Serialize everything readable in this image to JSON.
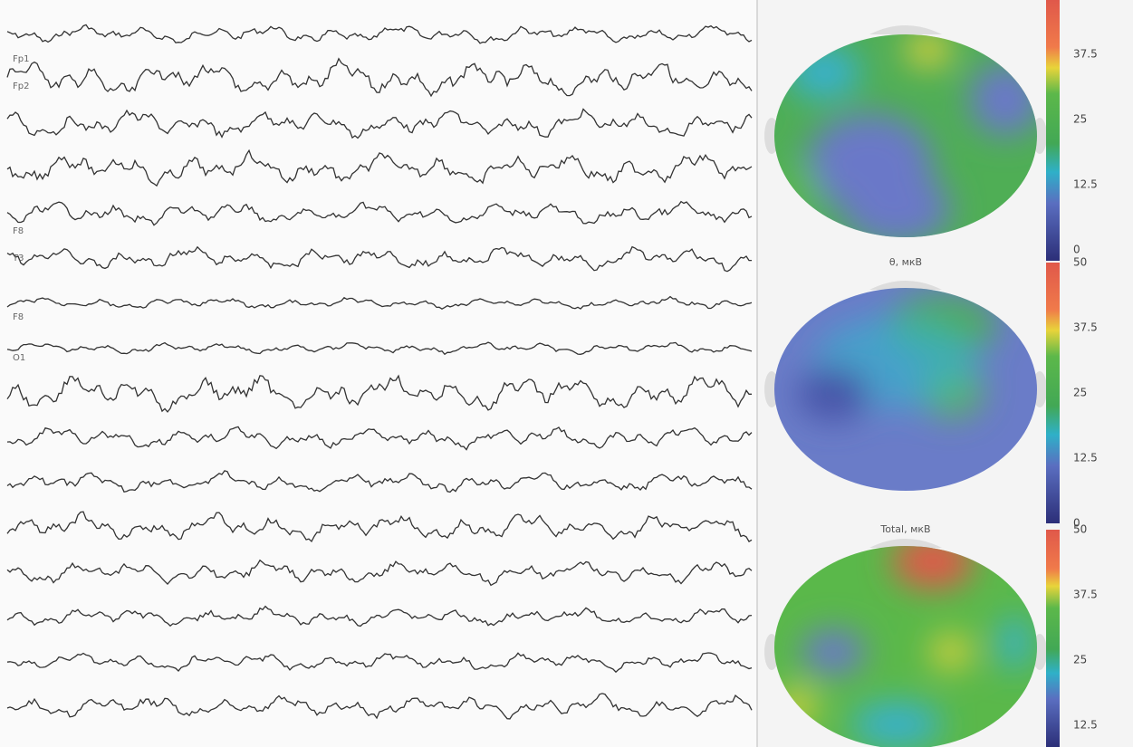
{
  "eeg": {
    "channels": [
      "Fp1",
      "Fp2",
      "F8",
      "T3",
      "F8",
      "O1"
    ]
  },
  "maps": [
    {
      "scale": [
        37.5,
        25,
        12.5,
        0
      ]
    },
    {
      "caption": "θ, мкВ",
      "scale": [
        50,
        37.5,
        25,
        12.5,
        0
      ]
    },
    {
      "caption": "Total, мкВ",
      "scale": [
        50,
        37.5,
        25,
        12.5
      ]
    }
  ]
}
